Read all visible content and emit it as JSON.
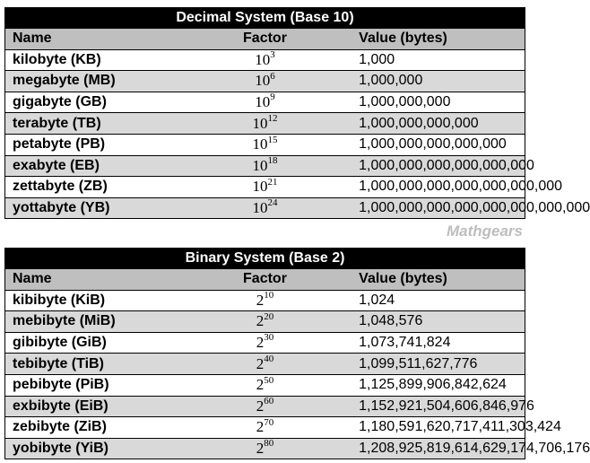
{
  "decimal": {
    "title": "Decimal System (Base 10)",
    "headers": {
      "name": "Name",
      "factor": "Factor",
      "value": "Value (bytes)"
    },
    "rows": [
      {
        "name": "kilobyte (KB)",
        "base": "10",
        "exp": "3",
        "value": "1,000"
      },
      {
        "name": "megabyte (MB)",
        "base": "10",
        "exp": "6",
        "value": "1,000,000"
      },
      {
        "name": "gigabyte (GB)",
        "base": "10",
        "exp": "9",
        "value": "1,000,000,000"
      },
      {
        "name": "terabyte (TB)",
        "base": "10",
        "exp": "12",
        "value": "1,000,000,000,000"
      },
      {
        "name": "petabyte (PB)",
        "base": "10",
        "exp": "15",
        "value": "1,000,000,000,000,000"
      },
      {
        "name": "exabyte (EB)",
        "base": "10",
        "exp": "18",
        "value": "1,000,000,000,000,000,000"
      },
      {
        "name": "zettabyte (ZB)",
        "base": "10",
        "exp": "21",
        "value": "1,000,000,000,000,000,000,000"
      },
      {
        "name": "yottabyte (YB)",
        "base": "10",
        "exp": "24",
        "value": "1,000,000,000,000,000,000,000,000"
      }
    ]
  },
  "watermark": "Mathgears",
  "binary": {
    "title": "Binary System (Base 2)",
    "headers": {
      "name": "Name",
      "factor": "Factor",
      "value": "Value (bytes)"
    },
    "rows": [
      {
        "name": "kibibyte (KiB)",
        "base": "2",
        "exp": "10",
        "value": "1,024"
      },
      {
        "name": "mebibyte (MiB)",
        "base": "2",
        "exp": "20",
        "value": "1,048,576"
      },
      {
        "name": "gibibyte (GiB)",
        "base": "2",
        "exp": "30",
        "value": "1,073,741,824"
      },
      {
        "name": "tebibyte (TiB)",
        "base": "2",
        "exp": "40",
        "value": "1,099,511,627,776"
      },
      {
        "name": "pebibyte (PiB)",
        "base": "2",
        "exp": "50",
        "value": "1,125,899,906,842,624"
      },
      {
        "name": "exbibyte (EiB)",
        "base": "2",
        "exp": "60",
        "value": "1,152,921,504,606,846,976"
      },
      {
        "name": "zebibyte (ZiB)",
        "base": "2",
        "exp": "70",
        "value": "1,180,591,620,717,411,303,424"
      },
      {
        "name": "yobibyte (YiB)",
        "base": "2",
        "exp": "80",
        "value": "1,208,925,819,614,629,174,706,176"
      }
    ]
  },
  "colors": {
    "title_bg": "#000000",
    "header_bg": "#bfbfbf",
    "shade_bg": "#d9d9d9",
    "watermark": "#bdbdbd"
  }
}
